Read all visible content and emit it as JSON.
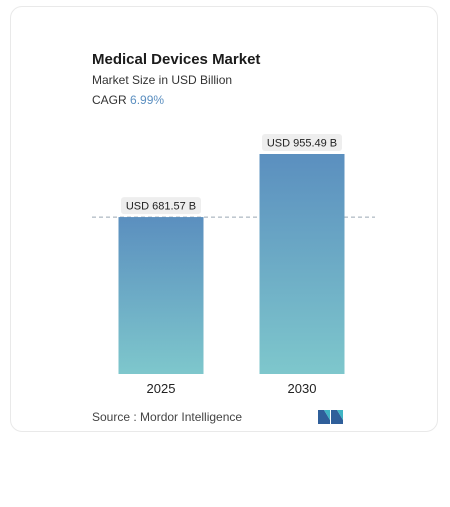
{
  "header": {
    "title": "Medical Devices Market",
    "subtitle": "Market Size in USD Billion",
    "cagr_label": "CAGR",
    "cagr_value": "6.99%"
  },
  "chart_data": {
    "type": "bar",
    "title": "Medical Devices Market",
    "categories": [
      "2025",
      "2030"
    ],
    "values": [
      681.57,
      955.49
    ],
    "value_labels": [
      "USD 681.57 B",
      "USD 955.49 B"
    ],
    "ylabel": "Market Size in USD Billion",
    "xlabel": "",
    "ylim": [
      0,
      955.49
    ],
    "grid": false,
    "reference_line": "dashed line at first bar value",
    "colors": {
      "bar_top": "#5b8fbf",
      "bar_bottom": "#7ec7cc",
      "label_bg": "#eeeeee"
    }
  },
  "footer": {
    "source": "Source :  Mordor Intelligence",
    "logo": "mordor-intelligence-logo"
  }
}
